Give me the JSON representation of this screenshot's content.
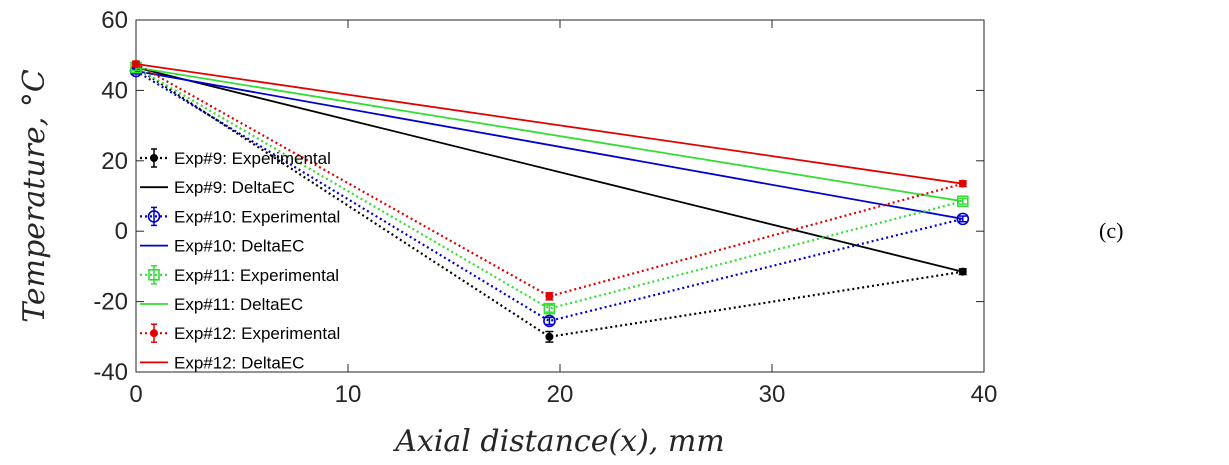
{
  "chart_data": {
    "type": "line",
    "xlabel": "Axial distance(x), mm",
    "ylabel": "Temperature, °C",
    "xlim": [
      0,
      40
    ],
    "ylim": [
      -40,
      60
    ],
    "x_ticks": [
      0,
      10,
      20,
      30,
      40
    ],
    "y_ticks": [
      -40,
      -20,
      0,
      20,
      40,
      60
    ],
    "grid": false,
    "legend_position": "left",
    "series": [
      {
        "name": "Exp#9: Experimental",
        "color": "#000000",
        "style": "dotted",
        "marker": "dot",
        "x": [
          0,
          19.5,
          39
        ],
        "y": [
          46.5,
          -30,
          -11.5
        ],
        "errors": [
          0.8,
          1.5,
          0.8
        ]
      },
      {
        "name": "Exp#9: DeltaEC",
        "color": "#000000",
        "style": "solid",
        "x": [
          0,
          39
        ],
        "y": [
          46.5,
          -11.5
        ]
      },
      {
        "name": "Exp#10: Experimental",
        "color": "#0000CC",
        "style": "dotted",
        "marker": "circle",
        "x": [
          0,
          19.5,
          39
        ],
        "y": [
          45.5,
          -25.5,
          3.5
        ],
        "errors": [
          0.8,
          1.0,
          0.8
        ]
      },
      {
        "name": "Exp#10: DeltaEC",
        "color": "#0000CC",
        "style": "solid",
        "x": [
          0,
          39
        ],
        "y": [
          45.5,
          3.5
        ]
      },
      {
        "name": "Exp#11: Experimental",
        "color": "#33DD33",
        "style": "dotted",
        "marker": "square",
        "x": [
          0,
          19.5,
          39
        ],
        "y": [
          46.5,
          -22,
          8.5
        ],
        "errors": [
          0.8,
          1.0,
          0.8
        ]
      },
      {
        "name": "Exp#11: DeltaEC",
        "color": "#33DD33",
        "style": "solid",
        "x": [
          0,
          39
        ],
        "y": [
          46.5,
          8.5
        ]
      },
      {
        "name": "Exp#12: Experimental",
        "color": "#E00000",
        "style": "dotted",
        "marker": "dot",
        "x": [
          0,
          19.5,
          39
        ],
        "y": [
          47.5,
          -18.5,
          13.5
        ],
        "errors": [
          0.8,
          1.0,
          0.8
        ]
      },
      {
        "name": "Exp#12: DeltaEC",
        "color": "#E00000",
        "style": "solid",
        "x": [
          0,
          39
        ],
        "y": [
          47.5,
          13.5
        ]
      }
    ]
  },
  "panel_label": "(c)"
}
